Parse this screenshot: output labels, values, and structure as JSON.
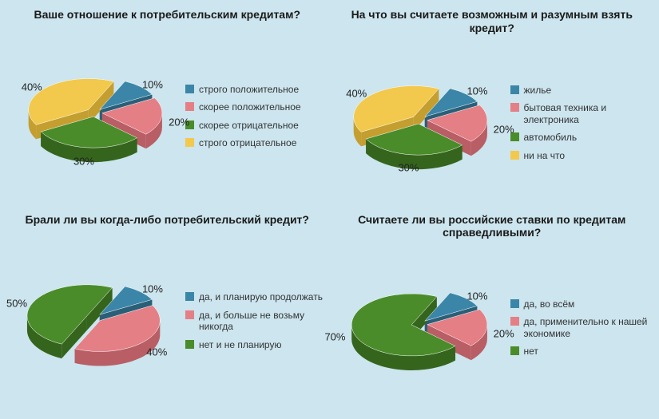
{
  "background_color": "#cce5ee",
  "label_fontsize": 13,
  "title_fontsize": 14,
  "legend_fontsize": 12,
  "pie_3d_depth": 18,
  "pie_tilt": 0.52,
  "pie_radius": 75,
  "pie_explode": 10,
  "charts": [
    {
      "title": "Ваше отношение к потребительским кредитам?",
      "slices": [
        {
          "label": "строго положительное",
          "value": 10,
          "color": "#3b86a8",
          "dark": "#2a5f78"
        },
        {
          "label": "скорее положительное",
          "value": 20,
          "color": "#e47f86",
          "dark": "#b85e64"
        },
        {
          "label": "скорее отрицательное",
          "value": 30,
          "color": "#4a8c2a",
          "dark": "#35651d"
        },
        {
          "label": "строго отрицательное",
          "value": 40,
          "color": "#f2c94c",
          "dark": "#c49f30"
        }
      ]
    },
    {
      "title": "На что вы считаете возможным и разумным взять кредит?",
      "slices": [
        {
          "label": "жилье",
          "value": 10,
          "color": "#3b86a8",
          "dark": "#2a5f78"
        },
        {
          "label": "бытовая техника и электроника",
          "value": 20,
          "color": "#e47f86",
          "dark": "#b85e64"
        },
        {
          "label": "автомобиль",
          "value": 30,
          "color": "#4a8c2a",
          "dark": "#35651d"
        },
        {
          "label": "ни на что",
          "value": 40,
          "color": "#f2c94c",
          "dark": "#c49f30"
        }
      ]
    },
    {
      "title": "Брали ли вы когда-либо потребительский кредит?",
      "slices": [
        {
          "label": "да, и планирую продолжать",
          "value": 10,
          "color": "#3b86a8",
          "dark": "#2a5f78"
        },
        {
          "label": "да, и больше не возьму никогда",
          "value": 40,
          "color": "#e47f86",
          "dark": "#b85e64"
        },
        {
          "label": "нет и не планирую",
          "value": 50,
          "color": "#4a8c2a",
          "dark": "#35651d"
        }
      ]
    },
    {
      "title": "Считаете ли вы российские ставки по кредитам справедливыми?",
      "slices": [
        {
          "label": "да, во всём",
          "value": 10,
          "color": "#3b86a8",
          "dark": "#2a5f78"
        },
        {
          "label": "да, применительно к нашей экономике",
          "value": 20,
          "color": "#e47f86",
          "dark": "#b85e64"
        },
        {
          "label": "нет",
          "value": 70,
          "color": "#4a8c2a",
          "dark": "#35651d"
        }
      ]
    }
  ]
}
